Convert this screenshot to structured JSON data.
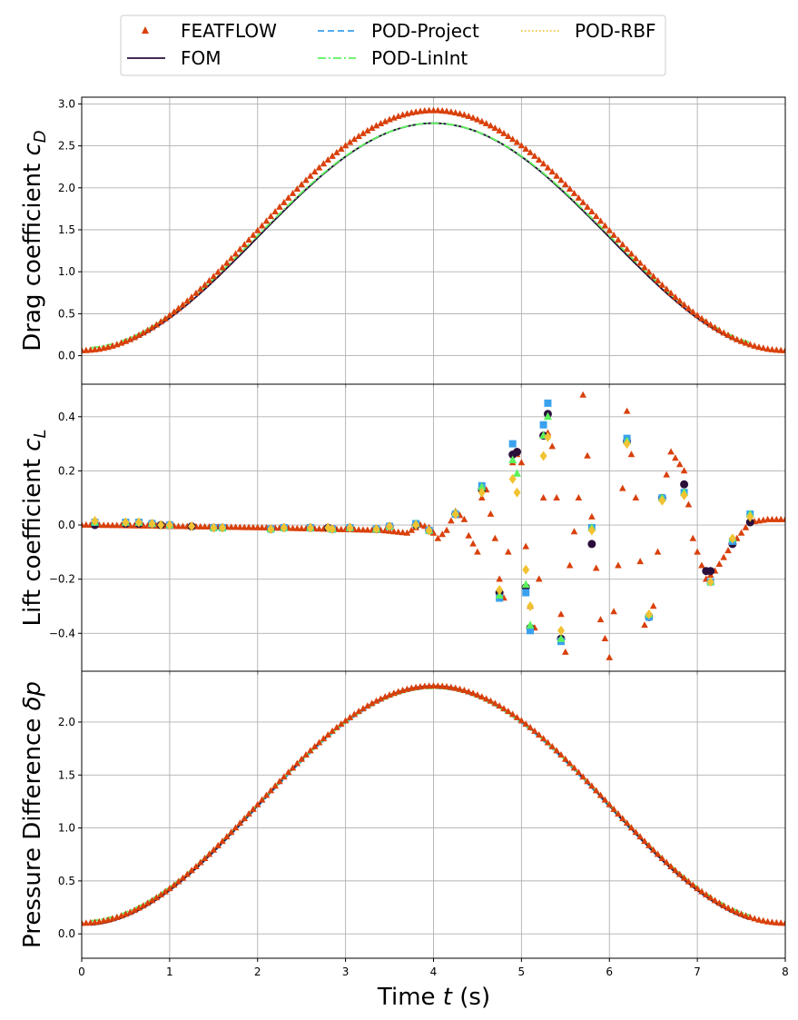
{
  "legend": {
    "placement": "top-center",
    "entries": [
      {
        "label": "FEATFLOW",
        "color": "#d9400b",
        "style": "triangle-marker"
      },
      {
        "label": "FOM",
        "color": "#2a0f3b",
        "style": "solid"
      },
      {
        "label": "POD-Project",
        "color": "#3aa1ee",
        "style": "dashed"
      },
      {
        "label": "POD-LinInt",
        "color": "#5cf25c",
        "style": "dashdot"
      },
      {
        "label": "POD-RBF",
        "color": "#f1c232",
        "style": "dotted"
      }
    ]
  },
  "colors": {
    "featflow": "#d9400b",
    "fom": "#2a0f3b",
    "pod_project": "#3aa1ee",
    "pod_linint": "#5cf25c",
    "pod_rbf": "#f1c232",
    "grid": "#b0b0b0"
  },
  "chart_data": [
    {
      "type": "line",
      "ylabel_text": "Drag coefficient ",
      "ylabel_symbol": "c",
      "ylabel_sub": "D",
      "xlim": [
        0,
        8
      ],
      "ylim": [
        -0.34,
        3.08
      ],
      "yticks": [
        0.0,
        0.5,
        1.0,
        1.5,
        2.0,
        2.5,
        3.0
      ],
      "ytick_labels": [
        "0.0",
        "0.5",
        "1.0",
        "1.5",
        "2.0",
        "2.5",
        "3.0"
      ],
      "grid": true,
      "featflow": {
        "offset": 0.06,
        "peak": 2.92,
        "t_start": 0.0,
        "t_end": 8.0,
        "count": 161
      },
      "fom": {
        "offset": 0.05,
        "peak": 2.77,
        "t_start": 0.1,
        "t_end": 7.6
      },
      "pod_project": {
        "offset": 0.05,
        "peak": 2.77,
        "t_start": 0.1,
        "t_end": 7.6
      },
      "pod_linint": {
        "offset": 0.09,
        "peak": 2.77,
        "t_start": 0.1,
        "t_end": 7.6
      },
      "pod_rbf": {
        "offset": 0.07,
        "peak": 2.77,
        "t_start": 0.1,
        "t_end": 7.6
      }
    },
    {
      "type": "scatter",
      "ylabel_text": "Lift coefficient ",
      "ylabel_symbol": "c",
      "ylabel_sub": "L",
      "xlim": [
        0,
        8
      ],
      "ylim": [
        -0.54,
        0.52
      ],
      "yticks": [
        -0.4,
        -0.2,
        0.0,
        0.2,
        0.4
      ],
      "ytick_labels": [
        "−0.4",
        "−0.2",
        "0.0",
        "0.2",
        "0.4"
      ],
      "grid": true,
      "featflow": {
        "t_start": 0.0,
        "t_end": 8.0,
        "count": 161,
        "keypoints": [
          [
            0,
            0
          ],
          [
            2.0,
            -0.01
          ],
          [
            3.4,
            -0.02
          ],
          [
            3.7,
            -0.03
          ],
          [
            3.85,
            0.0
          ],
          [
            3.95,
            -0.01
          ],
          [
            4.05,
            -0.05
          ],
          [
            4.15,
            -0.02
          ],
          [
            4.25,
            0.05
          ],
          [
            4.35,
            0.02
          ],
          [
            4.4,
            -0.04
          ],
          [
            4.5,
            -0.1
          ],
          [
            4.55,
            0.1
          ],
          [
            4.6,
            0.13
          ],
          [
            4.7,
            -0.05
          ],
          [
            4.75,
            -0.2
          ],
          [
            4.8,
            -0.27
          ],
          [
            4.85,
            -0.1
          ],
          [
            4.9,
            0.23
          ],
          [
            4.95,
            0.26
          ],
          [
            5.0,
            0.23
          ],
          [
            5.05,
            -0.08
          ],
          [
            5.1,
            -0.3
          ],
          [
            5.15,
            -0.38
          ],
          [
            5.2,
            -0.2
          ],
          [
            5.25,
            0.1
          ],
          [
            5.3,
            0.34
          ],
          [
            5.35,
            0.29
          ],
          [
            5.4,
            0.1
          ],
          [
            5.45,
            -0.33
          ],
          [
            5.5,
            -0.47
          ],
          [
            5.55,
            -0.15
          ],
          [
            5.65,
            0.1
          ],
          [
            5.7,
            0.48
          ],
          [
            5.8,
            0.03
          ],
          [
            5.9,
            -0.35
          ],
          [
            6.0,
            -0.49
          ],
          [
            6.1,
            -0.15
          ],
          [
            6.2,
            0.42
          ],
          [
            6.3,
            0.1
          ],
          [
            6.4,
            -0.37
          ],
          [
            6.5,
            -0.3
          ],
          [
            6.6,
            0.1
          ],
          [
            6.7,
            0.27
          ],
          [
            6.85,
            0.2
          ],
          [
            6.95,
            -0.05
          ],
          [
            7.1,
            -0.2
          ],
          [
            7.2,
            -0.17
          ],
          [
            7.4,
            -0.07
          ],
          [
            7.6,
            0.01
          ],
          [
            7.8,
            0.02
          ],
          [
            8.0,
            0.02
          ]
        ]
      },
      "fom_points": [
        [
          0.15,
          0.0
        ],
        [
          0.5,
          0.005
        ],
        [
          0.65,
          0.005
        ],
        [
          0.8,
          0.005
        ],
        [
          0.9,
          0.0
        ],
        [
          1.0,
          0.0
        ],
        [
          1.25,
          -0.005
        ],
        [
          1.5,
          -0.01
        ],
        [
          1.6,
          -0.01
        ],
        [
          2.15,
          -0.015
        ],
        [
          2.3,
          -0.01
        ],
        [
          2.6,
          -0.01
        ],
        [
          2.8,
          -0.01
        ],
        [
          2.85,
          -0.015
        ],
        [
          3.05,
          -0.01
        ],
        [
          3.35,
          -0.015
        ],
        [
          3.5,
          -0.005
        ],
        [
          3.8,
          0.0
        ],
        [
          3.95,
          -0.02
        ],
        [
          4.25,
          0.04
        ],
        [
          4.55,
          0.13
        ],
        [
          4.75,
          -0.25
        ],
        [
          4.9,
          0.26
        ],
        [
          4.95,
          0.27
        ],
        [
          5.05,
          -0.23
        ],
        [
          5.1,
          -0.38
        ],
        [
          5.25,
          0.33
        ],
        [
          5.3,
          0.41
        ],
        [
          5.45,
          -0.42
        ],
        [
          5.8,
          -0.07
        ],
        [
          6.2,
          0.31
        ],
        [
          6.45,
          -0.34
        ],
        [
          6.6,
          0.1
        ],
        [
          6.85,
          0.15
        ],
        [
          7.1,
          -0.17
        ],
        [
          7.15,
          -0.17
        ],
        [
          7.4,
          -0.07
        ],
        [
          7.6,
          0.01
        ]
      ],
      "pod_project_points": [
        [
          0.15,
          0.01
        ],
        [
          0.5,
          0.01
        ],
        [
          0.65,
          0.01
        ],
        [
          0.8,
          0.005
        ],
        [
          1.0,
          0.0
        ],
        [
          1.5,
          -0.01
        ],
        [
          1.6,
          -0.01
        ],
        [
          2.15,
          -0.015
        ],
        [
          2.3,
          -0.01
        ],
        [
          2.6,
          -0.01
        ],
        [
          2.85,
          -0.015
        ],
        [
          3.05,
          -0.01
        ],
        [
          3.35,
          -0.015
        ],
        [
          3.5,
          -0.005
        ],
        [
          3.8,
          0.005
        ],
        [
          3.95,
          -0.02
        ],
        [
          4.25,
          0.04
        ],
        [
          4.55,
          0.145
        ],
        [
          4.75,
          -0.27
        ],
        [
          4.9,
          0.3
        ],
        [
          5.05,
          -0.25
        ],
        [
          5.1,
          -0.39
        ],
        [
          5.25,
          0.37
        ],
        [
          5.3,
          0.45
        ],
        [
          5.45,
          -0.43
        ],
        [
          5.8,
          -0.01
        ],
        [
          6.2,
          0.32
        ],
        [
          6.45,
          -0.34
        ],
        [
          6.6,
          0.1
        ],
        [
          6.85,
          0.12
        ],
        [
          7.15,
          -0.21
        ],
        [
          7.4,
          -0.06
        ],
        [
          7.6,
          0.04
        ]
      ],
      "pod_linint_points": [
        [
          0.15,
          0.01
        ],
        [
          0.5,
          0.01
        ],
        [
          0.65,
          0.01
        ],
        [
          0.8,
          0.005
        ],
        [
          1.0,
          0.0
        ],
        [
          1.5,
          -0.01
        ],
        [
          1.6,
          -0.01
        ],
        [
          2.15,
          -0.015
        ],
        [
          2.3,
          -0.01
        ],
        [
          2.6,
          -0.01
        ],
        [
          2.85,
          -0.015
        ],
        [
          3.05,
          -0.01
        ],
        [
          3.35,
          -0.015
        ],
        [
          3.5,
          -0.005
        ],
        [
          3.8,
          0.005
        ],
        [
          3.95,
          -0.02
        ],
        [
          4.25,
          0.045
        ],
        [
          4.55,
          0.14
        ],
        [
          4.75,
          -0.26
        ],
        [
          4.9,
          0.24
        ],
        [
          4.95,
          0.19
        ],
        [
          5.05,
          -0.22
        ],
        [
          5.1,
          -0.37
        ],
        [
          5.25,
          0.33
        ],
        [
          5.3,
          0.4
        ],
        [
          5.45,
          -0.42
        ],
        [
          5.8,
          -0.01
        ],
        [
          6.2,
          0.31
        ],
        [
          6.45,
          -0.33
        ],
        [
          6.6,
          0.1
        ],
        [
          6.85,
          0.12
        ],
        [
          7.15,
          -0.21
        ],
        [
          7.4,
          -0.05
        ],
        [
          7.6,
          0.04
        ]
      ],
      "pod_rbf_points": [
        [
          0.15,
          0.015
        ],
        [
          0.5,
          0.01
        ],
        [
          0.65,
          0.01
        ],
        [
          0.8,
          0.005
        ],
        [
          0.9,
          0.0
        ],
        [
          1.0,
          0.0
        ],
        [
          1.25,
          -0.005
        ],
        [
          1.5,
          -0.01
        ],
        [
          1.6,
          -0.01
        ],
        [
          2.15,
          -0.015
        ],
        [
          2.3,
          -0.01
        ],
        [
          2.6,
          -0.01
        ],
        [
          2.8,
          -0.01
        ],
        [
          2.85,
          -0.015
        ],
        [
          3.05,
          -0.01
        ],
        [
          3.35,
          -0.015
        ],
        [
          3.5,
          -0.005
        ],
        [
          3.8,
          0.0
        ],
        [
          3.95,
          -0.02
        ],
        [
          4.25,
          0.04
        ],
        [
          4.55,
          0.12
        ],
        [
          4.75,
          -0.24
        ],
        [
          4.9,
          0.17
        ],
        [
          4.95,
          0.12
        ],
        [
          5.05,
          -0.165
        ],
        [
          5.1,
          -0.3
        ],
        [
          5.25,
          0.255
        ],
        [
          5.3,
          0.325
        ],
        [
          5.45,
          -0.39
        ],
        [
          5.8,
          -0.02
        ],
        [
          6.2,
          0.3
        ],
        [
          6.45,
          -0.33
        ],
        [
          6.6,
          0.09
        ],
        [
          6.85,
          0.11
        ],
        [
          7.15,
          -0.21
        ],
        [
          7.4,
          -0.05
        ],
        [
          7.6,
          0.03
        ]
      ]
    },
    {
      "type": "line",
      "ylabel_text": "Pressure Difference ",
      "ylabel_symbol": "δp",
      "ylabel_sub": "",
      "xlabel_text": "Time ",
      "xlabel_symbol": "t",
      "xlabel_unit": " (s)",
      "xlim": [
        0,
        8
      ],
      "ylim": [
        -0.23,
        2.48
      ],
      "xticks": [
        0,
        1,
        2,
        3,
        4,
        5,
        6,
        7,
        8
      ],
      "xtick_labels": [
        "0",
        "1",
        "2",
        "3",
        "4",
        "5",
        "6",
        "7",
        "8"
      ],
      "yticks": [
        0.0,
        0.5,
        1.0,
        1.5,
        2.0
      ],
      "ytick_labels": [
        "0.0",
        "0.5",
        "1.0",
        "1.5",
        "2.0"
      ],
      "grid": true,
      "featflow": {
        "offset": 0.1,
        "peak": 2.34,
        "t_start": 0.0,
        "t_end": 8.0,
        "count": 161
      },
      "fom": {
        "offset": 0.08,
        "peak": 2.34,
        "t_start": 0.1,
        "t_end": 7.6
      },
      "pod_project": {
        "offset": 0.08,
        "peak": 2.32,
        "t_start": 0.1,
        "t_end": 7.6
      },
      "pod_linint": {
        "offset": 0.12,
        "peak": 2.32,
        "t_start": 0.1,
        "t_end": 7.6
      },
      "pod_rbf": {
        "offset": 0.1,
        "peak": 2.32,
        "t_start": 0.1,
        "t_end": 7.6
      }
    }
  ]
}
